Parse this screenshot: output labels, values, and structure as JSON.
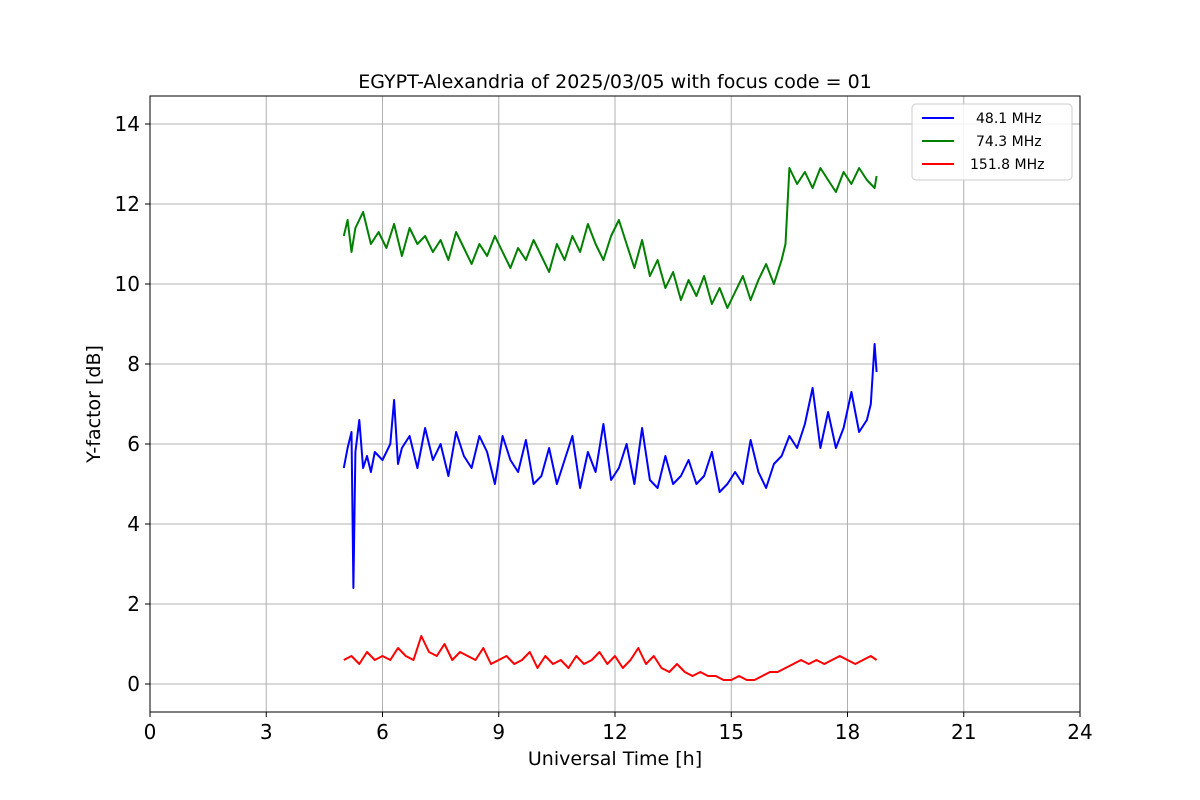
{
  "chart_data": {
    "type": "line",
    "title": "EGYPT-Alexandria of 2025/03/05 with focus code = 01",
    "xlabel": "Universal Time [h]",
    "ylabel": "Y-factor [dB]",
    "xlim": [
      0,
      24
    ],
    "ylim": [
      -0.7,
      14.7
    ],
    "xticks": [
      0,
      3,
      6,
      9,
      12,
      15,
      18,
      21,
      24
    ],
    "yticks": [
      0,
      2,
      4,
      6,
      8,
      10,
      12,
      14
    ],
    "grid": true,
    "legend_position": "top-right",
    "series": [
      {
        "name": "48.1 MHz",
        "color": "#0000ff",
        "x": [
          5.0,
          5.1,
          5.2,
          5.25,
          5.3,
          5.4,
          5.5,
          5.6,
          5.7,
          5.8,
          6.0,
          6.2,
          6.3,
          6.4,
          6.5,
          6.7,
          6.9,
          7.0,
          7.1,
          7.3,
          7.5,
          7.7,
          7.9,
          8.1,
          8.3,
          8.5,
          8.7,
          8.9,
          9.1,
          9.3,
          9.5,
          9.7,
          9.9,
          10.1,
          10.3,
          10.5,
          10.7,
          10.9,
          11.1,
          11.3,
          11.5,
          11.7,
          11.9,
          12.1,
          12.3,
          12.5,
          12.7,
          12.9,
          13.1,
          13.3,
          13.5,
          13.7,
          13.9,
          14.1,
          14.3,
          14.5,
          14.7,
          14.9,
          15.1,
          15.3,
          15.5,
          15.7,
          15.9,
          16.1,
          16.3,
          16.5,
          16.7,
          16.9,
          17.1,
          17.3,
          17.5,
          17.7,
          17.9,
          18.1,
          18.3,
          18.5,
          18.6,
          18.7,
          18.75
        ],
        "values": [
          5.4,
          5.9,
          6.3,
          2.4,
          5.8,
          6.6,
          5.4,
          5.7,
          5.3,
          5.8,
          5.6,
          6.0,
          7.1,
          5.5,
          5.9,
          6.2,
          5.4,
          5.9,
          6.4,
          5.6,
          6.0,
          5.2,
          6.3,
          5.7,
          5.4,
          6.2,
          5.8,
          5.0,
          6.2,
          5.6,
          5.3,
          6.1,
          5.0,
          5.2,
          5.9,
          5.0,
          5.6,
          6.2,
          4.9,
          5.8,
          5.3,
          6.5,
          5.1,
          5.4,
          6.0,
          5.0,
          6.4,
          5.1,
          4.9,
          5.7,
          5.0,
          5.2,
          5.6,
          5.0,
          5.2,
          5.8,
          4.8,
          5.0,
          5.3,
          5.0,
          6.1,
          5.3,
          4.9,
          5.5,
          5.7,
          6.2,
          5.9,
          6.5,
          7.4,
          5.9,
          6.8,
          5.9,
          6.4,
          7.3,
          6.3,
          6.6,
          7.0,
          8.5,
          7.8
        ]
      },
      {
        "name": "74.3 MHz",
        "color": "#008000",
        "x": [
          5.0,
          5.1,
          5.2,
          5.3,
          5.5,
          5.7,
          5.9,
          6.1,
          6.3,
          6.5,
          6.7,
          6.9,
          7.1,
          7.3,
          7.5,
          7.7,
          7.9,
          8.1,
          8.3,
          8.5,
          8.7,
          8.9,
          9.1,
          9.3,
          9.5,
          9.7,
          9.9,
          10.1,
          10.3,
          10.5,
          10.7,
          10.9,
          11.1,
          11.3,
          11.5,
          11.7,
          11.9,
          12.1,
          12.3,
          12.5,
          12.7,
          12.9,
          13.1,
          13.3,
          13.5,
          13.7,
          13.9,
          14.1,
          14.3,
          14.5,
          14.7,
          14.9,
          15.1,
          15.3,
          15.5,
          15.7,
          15.9,
          16.1,
          16.3,
          16.4,
          16.5,
          16.7,
          16.9,
          17.1,
          17.3,
          17.5,
          17.7,
          17.9,
          18.1,
          18.3,
          18.5,
          18.7,
          18.75
        ],
        "values": [
          11.2,
          11.6,
          10.8,
          11.4,
          11.8,
          11.0,
          11.3,
          10.9,
          11.5,
          10.7,
          11.4,
          11.0,
          11.2,
          10.8,
          11.1,
          10.6,
          11.3,
          10.9,
          10.5,
          11.0,
          10.7,
          11.2,
          10.8,
          10.4,
          10.9,
          10.6,
          11.1,
          10.7,
          10.3,
          11.0,
          10.6,
          11.2,
          10.8,
          11.5,
          11.0,
          10.6,
          11.2,
          11.6,
          11.0,
          10.4,
          11.1,
          10.2,
          10.6,
          9.9,
          10.3,
          9.6,
          10.1,
          9.7,
          10.2,
          9.5,
          9.9,
          9.4,
          9.8,
          10.2,
          9.6,
          10.1,
          10.5,
          10.0,
          10.6,
          11.0,
          12.9,
          12.5,
          12.8,
          12.4,
          12.9,
          12.6,
          12.3,
          12.8,
          12.5,
          12.9,
          12.6,
          12.4,
          12.7
        ]
      },
      {
        "name": "151.8 MHz",
        "color": "#ff0000",
        "x": [
          5.0,
          5.2,
          5.4,
          5.6,
          5.8,
          6.0,
          6.2,
          6.4,
          6.6,
          6.8,
          7.0,
          7.2,
          7.4,
          7.6,
          7.8,
          8.0,
          8.2,
          8.4,
          8.6,
          8.8,
          9.0,
          9.2,
          9.4,
          9.6,
          9.8,
          10.0,
          10.2,
          10.4,
          10.6,
          10.8,
          11.0,
          11.2,
          11.4,
          11.6,
          11.8,
          12.0,
          12.2,
          12.4,
          12.6,
          12.8,
          13.0,
          13.2,
          13.4,
          13.6,
          13.8,
          14.0,
          14.2,
          14.4,
          14.6,
          14.8,
          15.0,
          15.2,
          15.4,
          15.6,
          15.8,
          16.0,
          16.2,
          16.4,
          16.6,
          16.8,
          17.0,
          17.2,
          17.4,
          17.6,
          17.8,
          18.0,
          18.2,
          18.4,
          18.6,
          18.75
        ],
        "values": [
          0.6,
          0.7,
          0.5,
          0.8,
          0.6,
          0.7,
          0.6,
          0.9,
          0.7,
          0.6,
          1.2,
          0.8,
          0.7,
          1.0,
          0.6,
          0.8,
          0.7,
          0.6,
          0.9,
          0.5,
          0.6,
          0.7,
          0.5,
          0.6,
          0.8,
          0.4,
          0.7,
          0.5,
          0.6,
          0.4,
          0.7,
          0.5,
          0.6,
          0.8,
          0.5,
          0.7,
          0.4,
          0.6,
          0.9,
          0.5,
          0.7,
          0.4,
          0.3,
          0.5,
          0.3,
          0.2,
          0.3,
          0.2,
          0.2,
          0.1,
          0.1,
          0.2,
          0.1,
          0.1,
          0.2,
          0.3,
          0.3,
          0.4,
          0.5,
          0.6,
          0.5,
          0.6,
          0.5,
          0.6,
          0.7,
          0.6,
          0.5,
          0.6,
          0.7,
          0.6
        ]
      }
    ]
  }
}
